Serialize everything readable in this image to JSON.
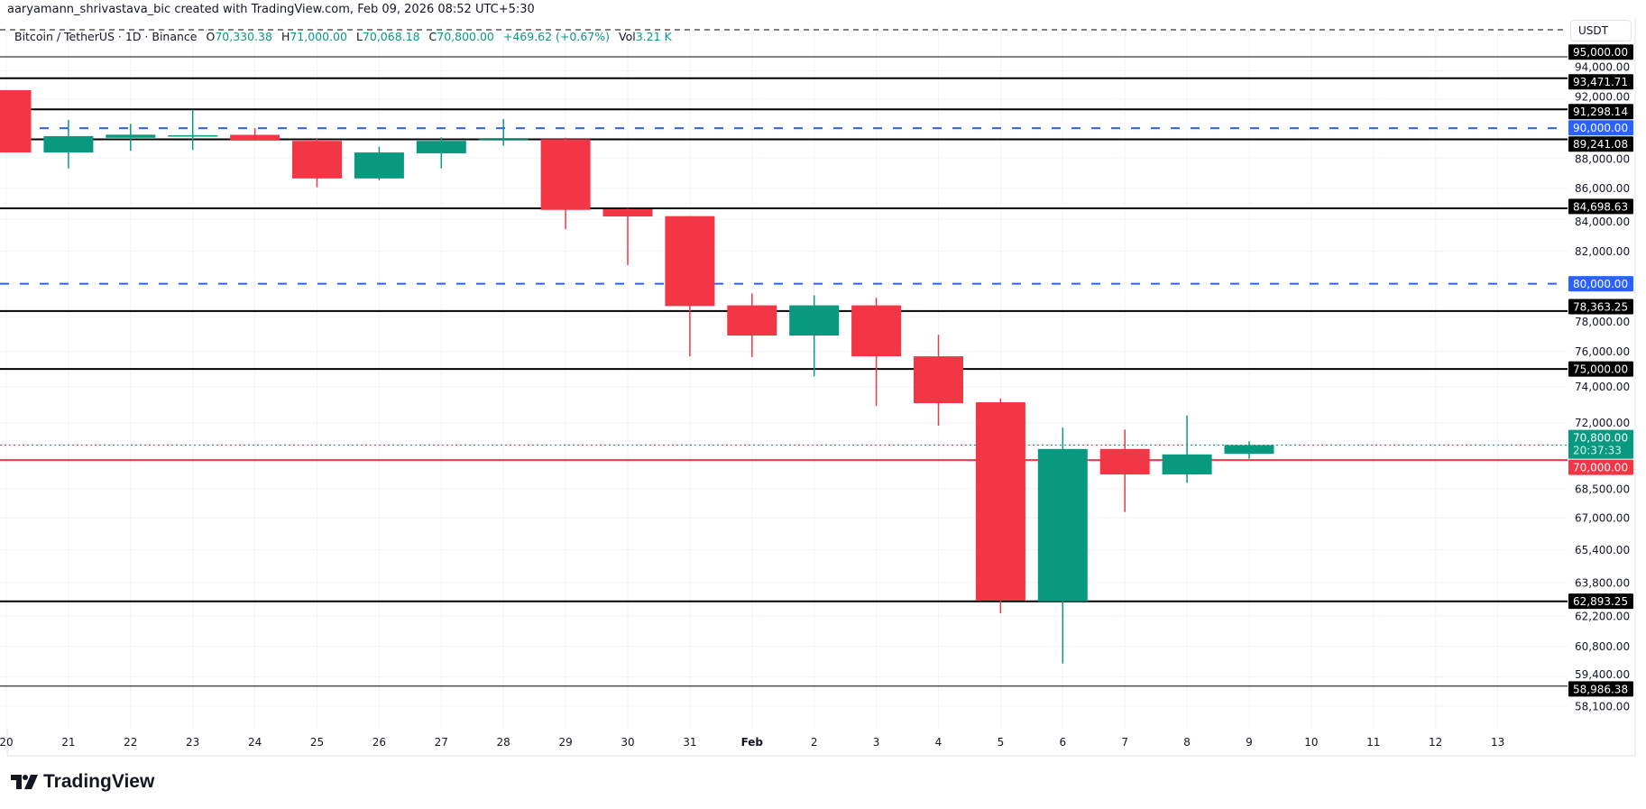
{
  "attribution": "aaryamann_shrivastava_bic created with TradingView.com, Feb 09, 2026 08:52 UTC+5:30",
  "legend": {
    "symbol": "Bitcoin / TetherUS · 1D · Binance",
    "o_label": "O",
    "o": "70,330.38",
    "h_label": "H",
    "h": "71,000.00",
    "l_label": "L",
    "l": "70,068.18",
    "c_label": "C",
    "c": "70,800.00",
    "change": "+469.62 (+0.67%)",
    "vol_label": "Vol",
    "vol": "3.21 K"
  },
  "currency": "USDT",
  "logo_text": "TradingView",
  "colors": {
    "up": "#089981",
    "down": "#f23645",
    "level": "#000000",
    "blue": "#2962ff",
    "red_line": "#f23645"
  },
  "chart_data": {
    "type": "candlestick",
    "y_scale": "log",
    "ylim": [
      57500,
      95500
    ],
    "grid": true,
    "x_labels": [
      "20",
      "21",
      "22",
      "23",
      "24",
      "25",
      "26",
      "27",
      "28",
      "29",
      "30",
      "31",
      "Feb",
      "2",
      "3",
      "4",
      "5",
      "6",
      "7",
      "8",
      "9",
      "10",
      "11",
      "12",
      "13"
    ],
    "y_ticks": [
      {
        "v": 94000,
        "label": "94,000.00"
      },
      {
        "v": 92000,
        "label": "92,000.00"
      },
      {
        "v": 88000,
        "label": "88,000.00"
      },
      {
        "v": 86000,
        "label": "86,000.00"
      },
      {
        "v": 84000,
        "label": "84,000.00"
      },
      {
        "v": 82000,
        "label": "82,000.00"
      },
      {
        "v": 78000,
        "label": "78,000.00"
      },
      {
        "v": 76000,
        "label": "76,000.00"
      },
      {
        "v": 74000,
        "label": "74,000.00"
      },
      {
        "v": 72000,
        "label": "72,000.00"
      },
      {
        "v": 68500,
        "label": "68,500.00"
      },
      {
        "v": 67000,
        "label": "67,000.00"
      },
      {
        "v": 65400,
        "label": "65,400.00"
      },
      {
        "v": 63800,
        "label": "63,800.00"
      },
      {
        "v": 62200,
        "label": "62,200.00"
      },
      {
        "v": 60800,
        "label": "60,800.00"
      },
      {
        "v": 59400,
        "label": "59,400.00"
      },
      {
        "v": 58100,
        "label": "58,100.00"
      }
    ],
    "candles": [
      {
        "date": "Jan 20",
        "o": 92630,
        "h": 92630,
        "l": 88360,
        "c": 88360
      },
      {
        "date": "Jan 21",
        "o": 88360,
        "h": 90560,
        "l": 87300,
        "c": 89460
      },
      {
        "date": "Jan 22",
        "o": 89350,
        "h": 90300,
        "l": 88470,
        "c": 89560
      },
      {
        "date": "Jan 23",
        "o": 89450,
        "h": 91270,
        "l": 88530,
        "c": 89520
      },
      {
        "date": "Jan 24",
        "o": 89550,
        "h": 90000,
        "l": 89150,
        "c": 89160
      },
      {
        "date": "Jan 25",
        "o": 89140,
        "h": 89280,
        "l": 86060,
        "c": 86640
      },
      {
        "date": "Jan 26",
        "o": 86640,
        "h": 88750,
        "l": 86520,
        "c": 88360
      },
      {
        "date": "Jan 27",
        "o": 88300,
        "h": 89380,
        "l": 87300,
        "c": 89140
      },
      {
        "date": "Jan 28",
        "o": 89170,
        "h": 90630,
        "l": 88820,
        "c": 89260
      },
      {
        "date": "Jan 29",
        "o": 89250,
        "h": 89350,
        "l": 83380,
        "c": 84600
      },
      {
        "date": "Jan 30",
        "o": 84640,
        "h": 84700,
        "l": 81140,
        "c": 84180
      },
      {
        "date": "Jan 31",
        "o": 84200,
        "h": 84200,
        "l": 75720,
        "c": 78660
      },
      {
        "date": "Feb 1",
        "o": 78700,
        "h": 79420,
        "l": 75680,
        "c": 76920
      },
      {
        "date": "Feb 2",
        "o": 76920,
        "h": 79300,
        "l": 74580,
        "c": 78700
      },
      {
        "date": "Feb 3",
        "o": 78700,
        "h": 79150,
        "l": 72930,
        "c": 75720
      },
      {
        "date": "Feb 4",
        "o": 75720,
        "h": 76970,
        "l": 71850,
        "c": 73080
      },
      {
        "date": "Feb 5",
        "o": 73130,
        "h": 73350,
        "l": 62330,
        "c": 62930
      },
      {
        "date": "Feb 6",
        "o": 62900,
        "h": 71740,
        "l": 60000,
        "c": 70590
      },
      {
        "date": "Feb 7",
        "o": 70590,
        "h": 71630,
        "l": 67300,
        "c": 69240
      },
      {
        "date": "Feb 8",
        "o": 69240,
        "h": 72400,
        "l": 68800,
        "c": 70300
      },
      {
        "date": "Feb 9",
        "o": 70330.38,
        "h": 71000,
        "l": 70068.18,
        "c": 70800
      }
    ],
    "levels": [
      {
        "v": 95000,
        "label": "95,000.00",
        "style": "solid-thin",
        "color": "#000000"
      },
      {
        "v": 93471.71,
        "label": "93,471.71",
        "style": "solid",
        "color": "#000000"
      },
      {
        "v": 91298.14,
        "label": "91,298.14",
        "style": "solid",
        "color": "#000000"
      },
      {
        "v": 90000,
        "label": "90,000.00",
        "style": "dashed",
        "color": "#2962ff"
      },
      {
        "v": 89241.08,
        "label": "89,241.08",
        "style": "solid",
        "color": "#000000"
      },
      {
        "v": 84698.63,
        "label": "84,698.63",
        "style": "solid",
        "color": "#000000"
      },
      {
        "v": 80000,
        "label": "80,000.00",
        "style": "dashed",
        "color": "#2962ff"
      },
      {
        "v": 78363.25,
        "label": "78,363.25",
        "style": "solid",
        "color": "#000000"
      },
      {
        "v": 75000,
        "label": "75,000.00",
        "style": "solid",
        "color": "#000000"
      },
      {
        "v": 70000,
        "label": "70,000.00",
        "style": "solid",
        "color": "#f23645"
      },
      {
        "v": 62893.25,
        "label": "62,893.25",
        "style": "solid",
        "color": "#000000"
      },
      {
        "v": 58986.38,
        "label": "58,986.38",
        "style": "solid-thin",
        "color": "#000000"
      }
    ],
    "last_price": {
      "v": 70800,
      "label": "70,800.00",
      "countdown": "20:37:33",
      "color": "#089981"
    }
  }
}
